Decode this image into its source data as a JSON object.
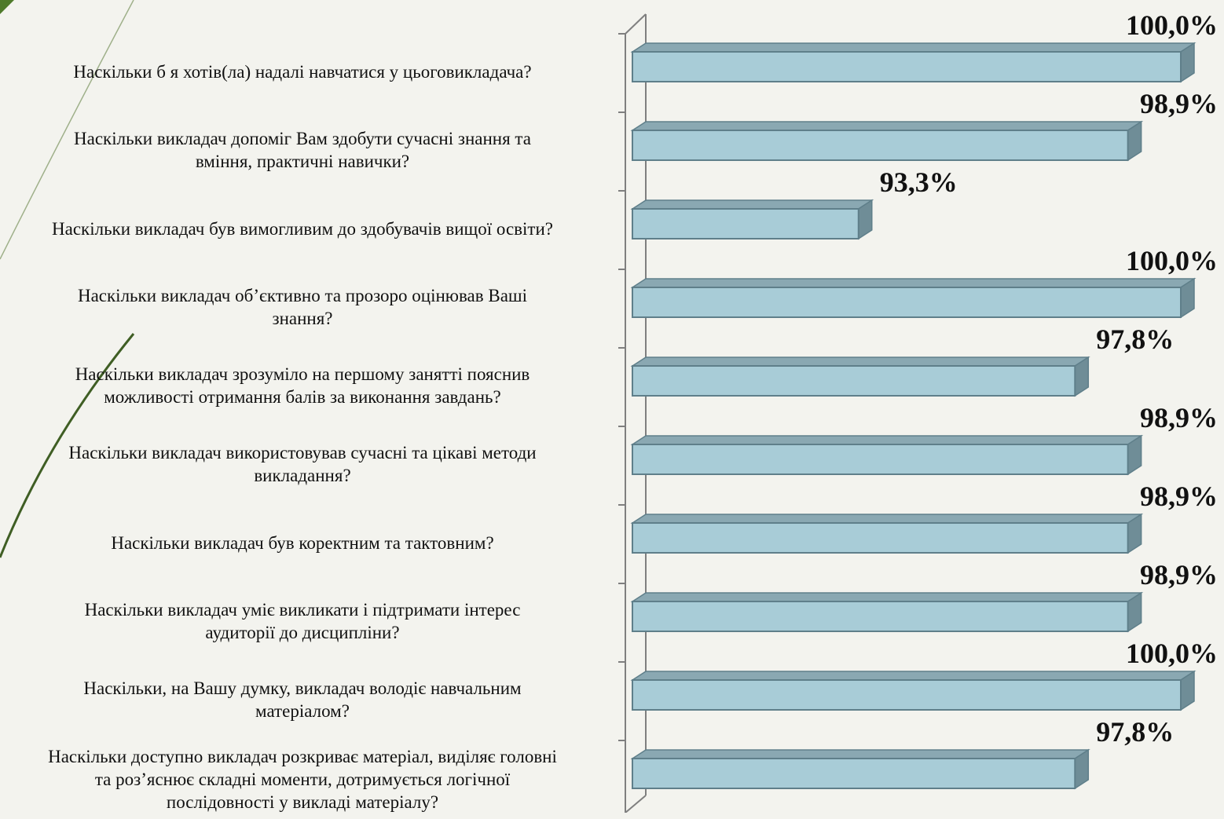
{
  "colors": {
    "background": "#f3f3ee",
    "bar_front": "#a8ccd7",
    "bar_top": "#8aa8b2",
    "bar_side": "#6f8d97",
    "bar_edge": "#5f7f8a",
    "axis": "#7f7f7f",
    "accent_green": "#4e7a2a"
  },
  "chart_data": {
    "type": "bar",
    "orientation": "horizontal",
    "style": "3d",
    "categories": [
      "Наскільки б я хотів(ла) надалі навчатися у цьоговикладача?",
      "Наскільки викладач допоміг Вам здобути сучасні знання та\nвміння, практичні навички?",
      "Наскільки викладач був вимогливим до здобувачів вищої освіти?",
      "Наскільки викладач об’єктивно та прозоро оцінював Ваші\nзнання?",
      "Наскільки викладач зрозуміло на першому занятті пояснив\nможливості отримання балів за виконання завдань?",
      "Наскільки викладач використовував сучасні та цікаві методи\nвикладання?",
      "Наскільки викладач був коректним та тактовним?",
      "Наскільки викладач уміє викликати і підтримати інтерес\nаудиторії до дисципліни?",
      "Наскільки, на Вашу думку, викладач володіє навчальним\nматеріалом?",
      "Наскільки доступно викладач розкриває матеріал, виділяє головні\nта роз’яснює складні моменти, дотримується логічної\nпослідовності у викладі матеріалу?"
    ],
    "values": [
      100.0,
      98.9,
      93.3,
      100.0,
      97.8,
      98.9,
      98.9,
      98.9,
      100.0,
      97.8
    ],
    "value_labels": [
      "100,0%",
      "98,9%",
      "93,3%",
      "100,0%",
      "97,8%",
      "98,9%",
      "98,9%",
      "98,9%",
      "100,0%",
      "97,8%"
    ],
    "xlim": [
      88.6,
      100.0
    ],
    "grid": false,
    "legend": "none"
  }
}
